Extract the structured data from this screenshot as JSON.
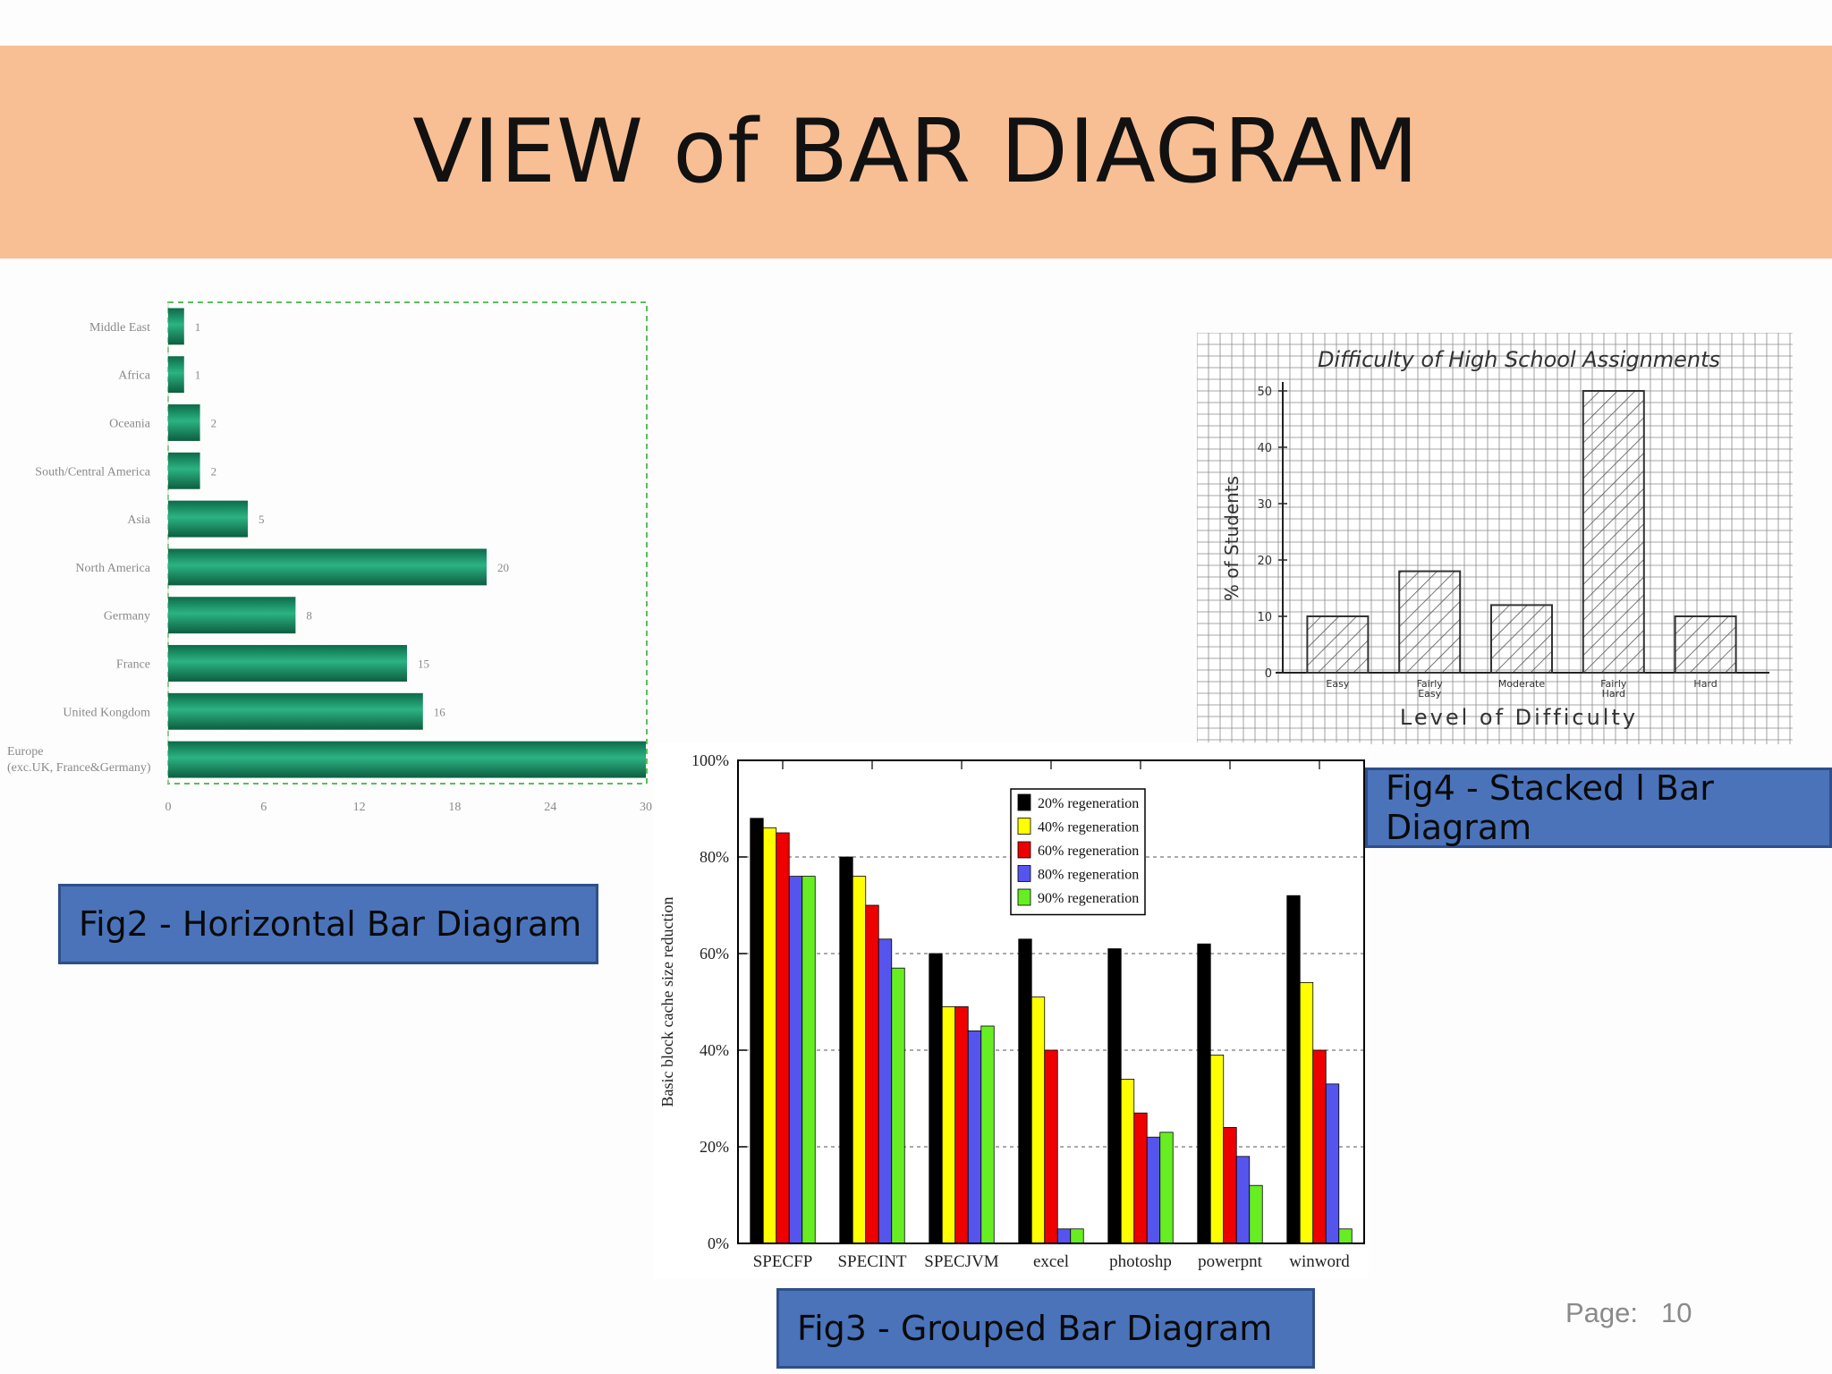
{
  "slide": {
    "title": "VIEW of BAR DIAGRAM",
    "page_label": "Page:",
    "page_number": "10",
    "captions": {
      "fig2": "Fig2 - Horizontal Bar Diagram",
      "fig3": "Fig3 - Grouped Bar Diagram",
      "fig4": "Fig4 - Stacked l Bar Diagram"
    }
  },
  "chart_data": [
    {
      "id": "fig2",
      "type": "bar",
      "orientation": "horizontal",
      "categories": [
        "Middle East",
        "Africa",
        "Oceania",
        "South/Central America",
        "Asia",
        "North America",
        "Germany",
        "France",
        "United Kongdom",
        "Europe (exc.UK, France&Germany)"
      ],
      "values": [
        1,
        1,
        2,
        2,
        5,
        20,
        8,
        15,
        16,
        30
      ],
      "xticks": [
        "0",
        "6",
        "12",
        "18",
        "24",
        "30"
      ],
      "xlim": [
        0,
        30
      ],
      "bar_color": "#1a9a6c"
    },
    {
      "id": "fig3",
      "type": "bar",
      "categories": [
        "SPECFP",
        "SPECINT",
        "SPECJVM",
        "excel",
        "photoshp",
        "powerpnt",
        "winword"
      ],
      "series": [
        {
          "name": "20% regeneration",
          "color": "#000000",
          "values": [
            88,
            80,
            60,
            63,
            61,
            62,
            72
          ]
        },
        {
          "name": "40% regeneration",
          "color": "#ffff00",
          "values": [
            86,
            76,
            49,
            51,
            34,
            39,
            54
          ]
        },
        {
          "name": "60% regeneration",
          "color": "#ee0000",
          "values": [
            85,
            70,
            49,
            40,
            27,
            24,
            40
          ]
        },
        {
          "name": "80% regeneration",
          "color": "#5555ee",
          "values": [
            76,
            63,
            44,
            3,
            22,
            18,
            33
          ]
        },
        {
          "name": "90% regeneration",
          "color": "#66ee22",
          "values": [
            76,
            57,
            45,
            3,
            23,
            12,
            3
          ]
        }
      ],
      "ylabel": "Basic block cache size reduction",
      "yticks": [
        "0%",
        "20%",
        "40%",
        "60%",
        "80%",
        "100%"
      ],
      "ylim": [
        0,
        100
      ],
      "legend": "top-right",
      "grid": true
    },
    {
      "id": "fig4",
      "type": "bar",
      "title": "Difficulty of High School Assignments",
      "categories": [
        "Easy",
        "Fairly Easy",
        "Moderate",
        "Fairly Hard",
        "Hard"
      ],
      "values": [
        10,
        18,
        12,
        50,
        10
      ],
      "ylabel": "% of Students",
      "xlabel": "Level of Difficulty",
      "yticks": [
        "0",
        "10",
        "20",
        "30",
        "40",
        "50"
      ],
      "ylim": [
        0,
        50
      ],
      "grid": true,
      "hatched": true
    }
  ]
}
